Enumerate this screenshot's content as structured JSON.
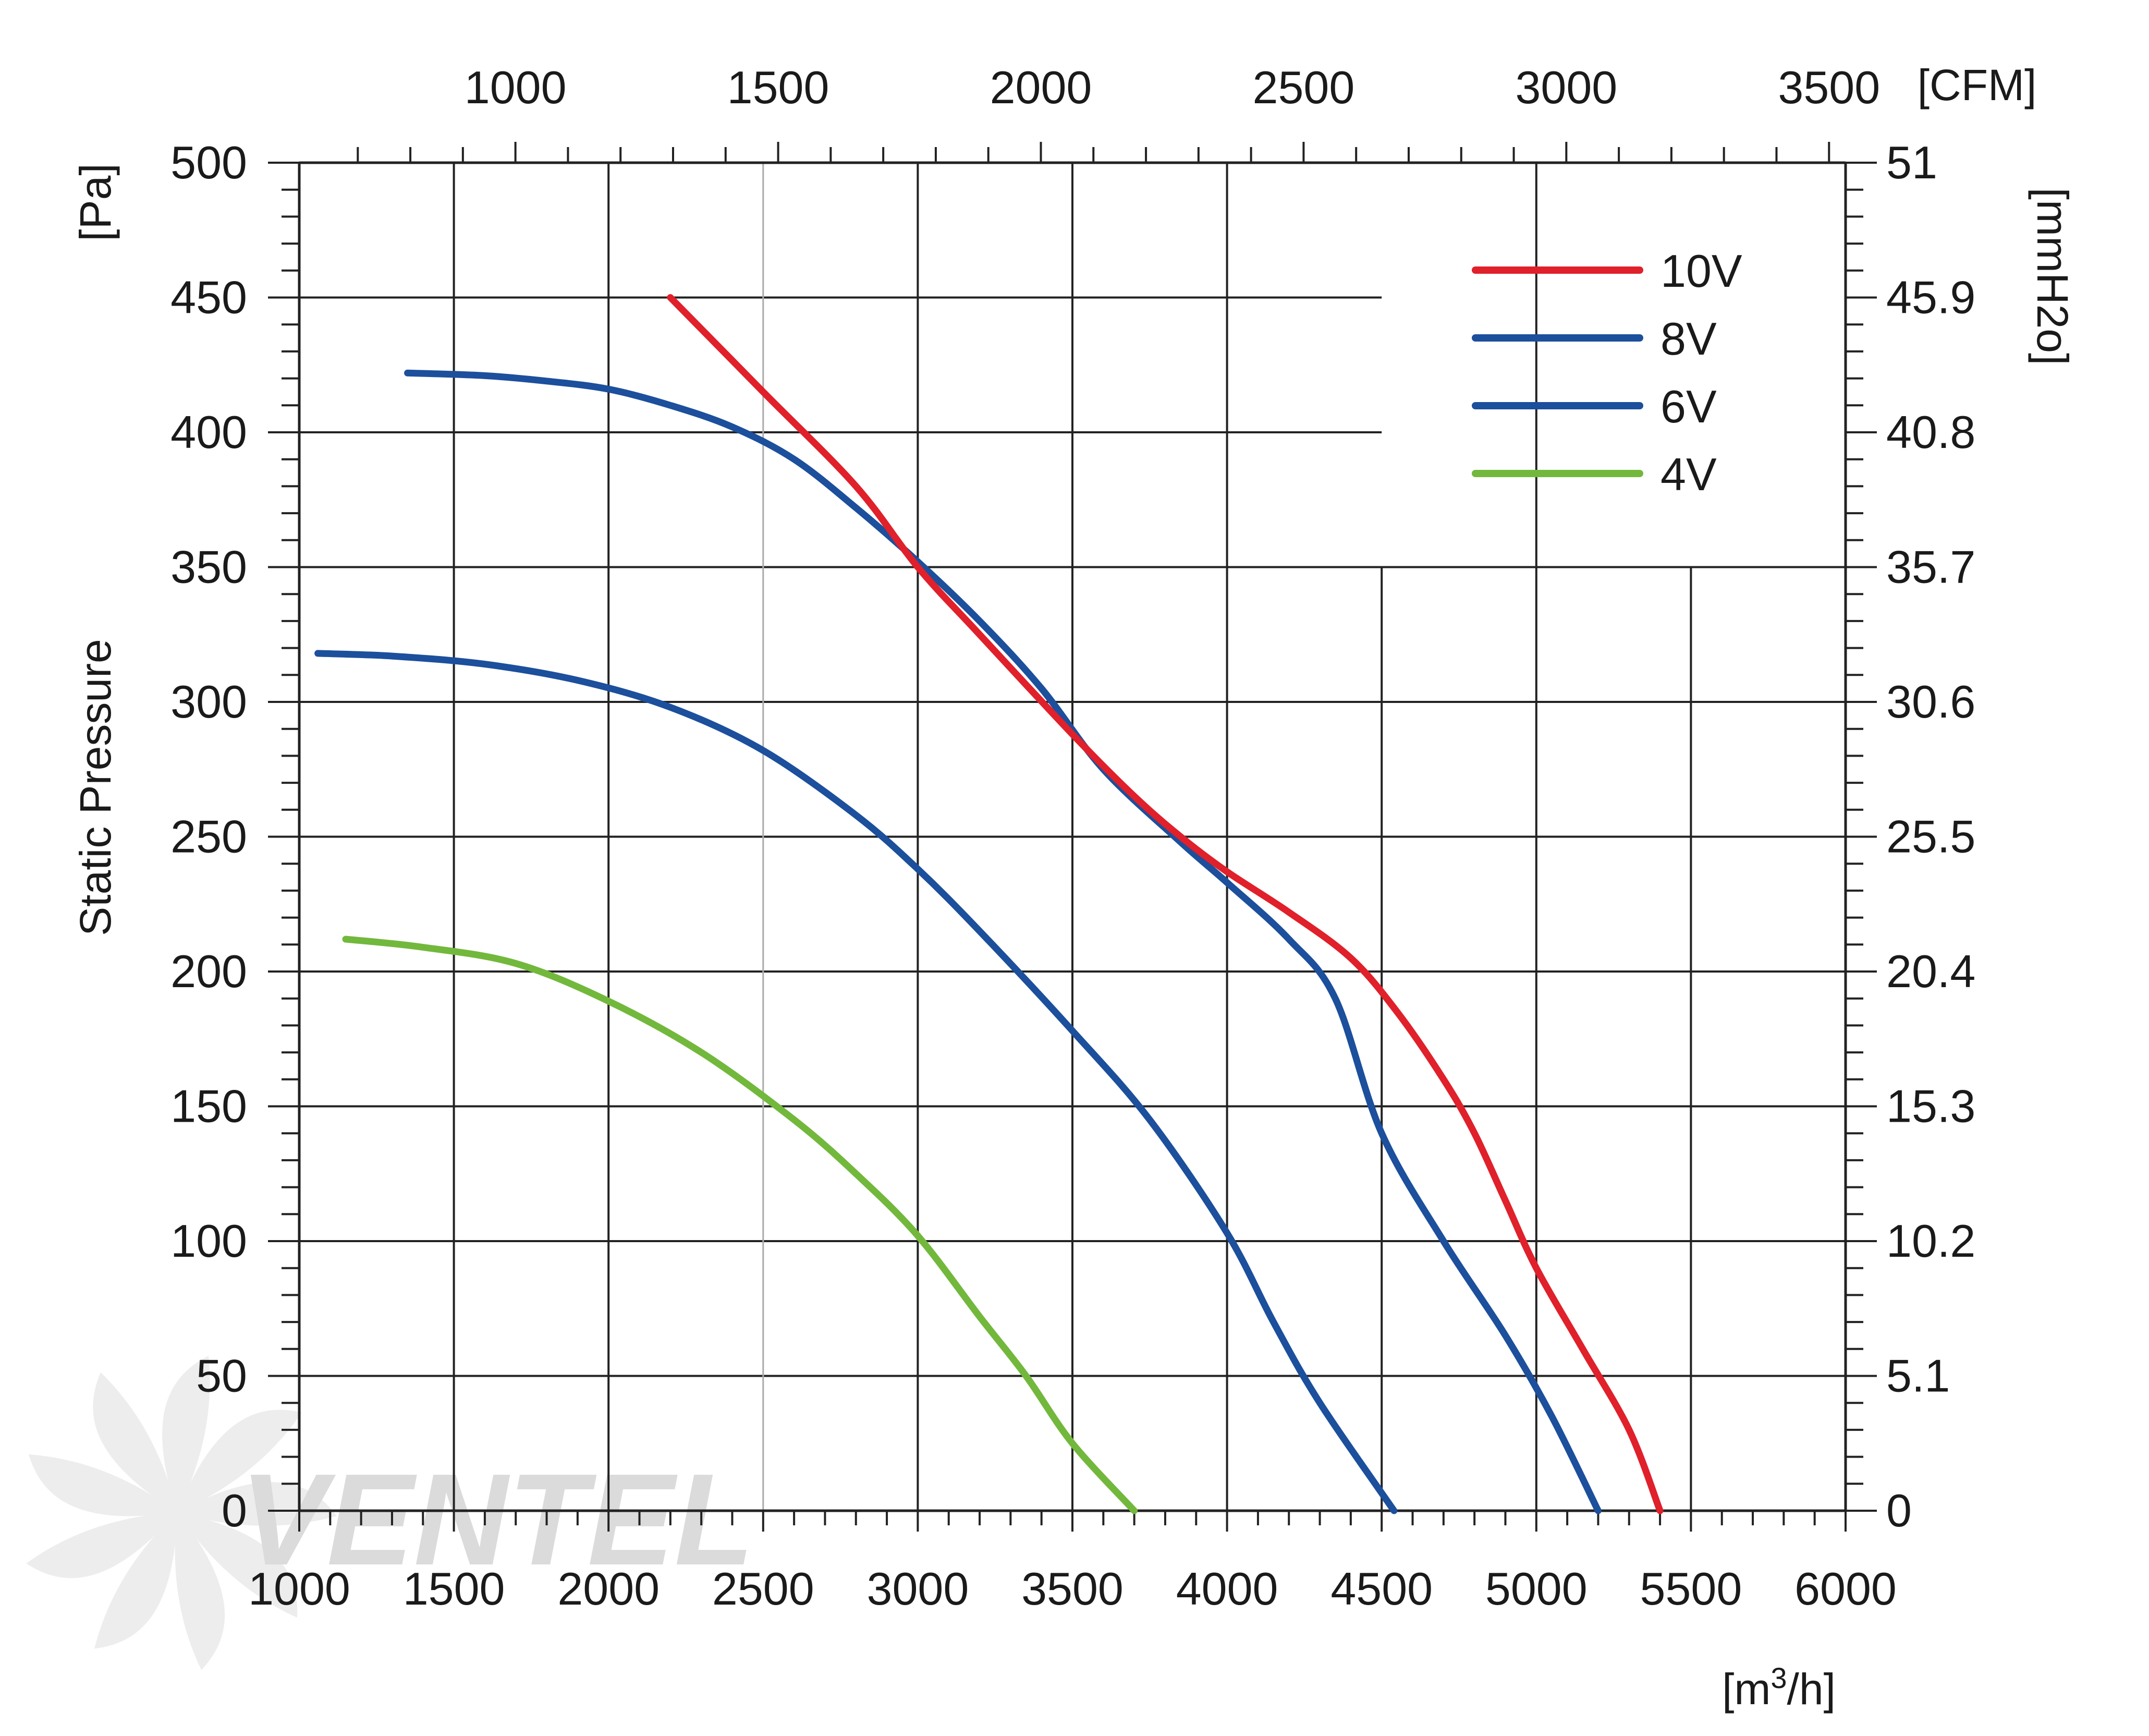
{
  "chart_data": {
    "type": "line",
    "title": "",
    "xlabel": "[m3/h]",
    "xlabel_main": "[m",
    "xlabel_sup": "3",
    "xlabel_tail": "/h]",
    "ylabel": "Static Pressure",
    "ylabel_unit": "[Pa]",
    "y2label": "[mmH2o]",
    "x2label": "[CFM]",
    "xlim": [
      1000,
      6000
    ],
    "ylim": [
      0,
      500
    ],
    "x_ticks": [
      "1000",
      "1500",
      "2000",
      "2500",
      "3000",
      "3500",
      "4000",
      "4500",
      "5000",
      "5500",
      "6000"
    ],
    "y_ticks": [
      "0",
      "50",
      "100",
      "150",
      "200",
      "250",
      "300",
      "350",
      "400",
      "450",
      "500"
    ],
    "y2_ticks": [
      "0",
      "5.1",
      "10.2",
      "15.3",
      "20.4",
      "25.5",
      "30.6",
      "35.7",
      "40.8",
      "45.9",
      "51"
    ],
    "x2_ticks": [
      "1000",
      "1500",
      "2000",
      "2500",
      "3000",
      "3500"
    ],
    "grid": true,
    "legend_position": "top-right",
    "series": [
      {
        "name": "10V",
        "color": "#e0202a",
        "x": [
          2200,
          2500,
          2800,
          3000,
          3200,
          3500,
          3700,
          3850,
          4000,
          4200,
          4400,
          4550,
          4700,
          4800,
          4900,
          5000,
          5150,
          5300,
          5400
        ],
        "y": [
          450,
          415,
          380,
          350,
          325,
          288,
          265,
          250,
          237,
          222,
          205,
          185,
          160,
          140,
          115,
          90,
          60,
          30,
          0
        ]
      },
      {
        "name": "8V",
        "color": "#1c4f9c",
        "x": [
          1350,
          1600,
          1800,
          2000,
          2200,
          2400,
          2600,
          2800,
          3000,
          3200,
          3400,
          3600,
          3850,
          4000,
          4200,
          4350,
          4500,
          4700,
          4900,
          5050,
          5200
        ],
        "y": [
          422,
          421,
          419,
          416,
          410,
          402,
          390,
          372,
          352,
          330,
          305,
          275,
          248,
          233,
          212,
          190,
          140,
          100,
          65,
          35,
          0
        ]
      },
      {
        "name": "6V",
        "color": "#1c4f9c",
        "x": [
          1060,
          1300,
          1600,
          1900,
          2200,
          2500,
          2800,
          3000,
          3200,
          3500,
          3750,
          4000,
          4150,
          4300,
          4540
        ],
        "y": [
          318,
          317,
          314,
          308,
          298,
          282,
          258,
          238,
          215,
          178,
          145,
          103,
          70,
          40,
          0
        ]
      },
      {
        "name": "4V",
        "color": "#72b83c",
        "x": [
          1150,
          1400,
          1700,
          2000,
          2300,
          2600,
          2800,
          3000,
          3200,
          3350,
          3500,
          3700
        ],
        "y": [
          212,
          209,
          203,
          189,
          170,
          145,
          125,
          102,
          72,
          50,
          25,
          0
        ]
      }
    ],
    "watermark": "VENTEL"
  }
}
